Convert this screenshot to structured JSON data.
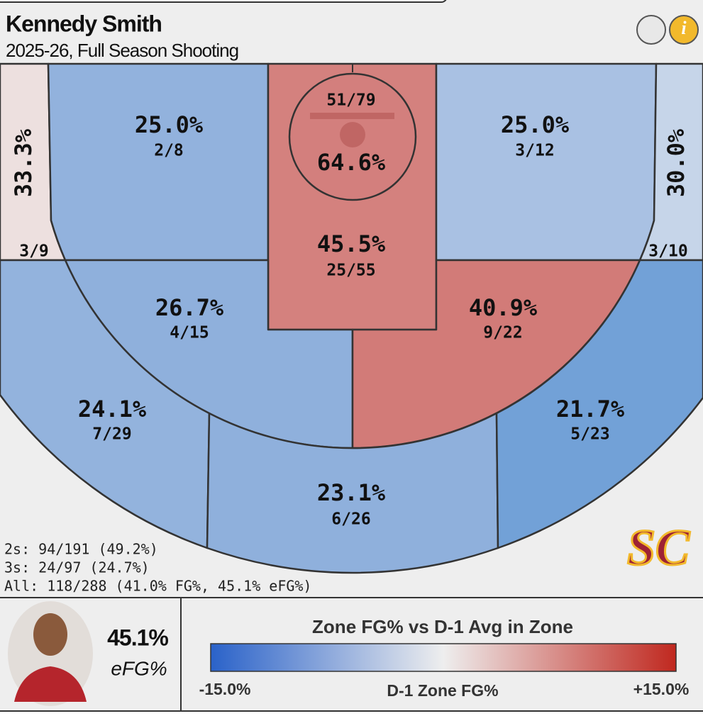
{
  "header": {
    "title": "Kennedy Smith",
    "subtitle": "2025-26, Full Season Shooting"
  },
  "zones": [
    {
      "pct": "33.3%",
      "made_att": "3/9",
      "color": "#ede0df"
    },
    {
      "pct": "25.0%",
      "made_att": "2/8",
      "color": "#92b2dd"
    },
    {
      "pct": "64.6%",
      "made_att": "51/79",
      "color": "#d37f7d"
    },
    {
      "pct": "45.5%",
      "made_att": "25/55",
      "color": "#d4817e"
    },
    {
      "pct": "25.0%",
      "made_att": "3/12",
      "color": "#a9c1e3"
    },
    {
      "pct": "30.0%",
      "made_att": "3/10",
      "color": "#c6d5e9"
    },
    {
      "pct": "26.7%",
      "made_att": "4/15",
      "color": "#8fb0dc"
    },
    {
      "pct": "40.9%",
      "made_att": "9/22",
      "color": "#d27b78"
    },
    {
      "pct": "24.1%",
      "made_att": "7/29",
      "color": "#93b3dd"
    },
    {
      "pct": "23.1%",
      "made_att": "6/26",
      "color": "#8fb0dc"
    },
    {
      "pct": "21.7%",
      "made_att": "5/23",
      "color": "#72a1d7"
    }
  ],
  "summary": [
    "2s: 94/191 (49.2%)",
    "3s: 24/97 (24.7%)",
    "All: 118/288 (41.0% FG%, 45.1% eFG%)"
  ],
  "logo": "SC",
  "player": {
    "efg": "45.1%",
    "efg_label": "eFG%"
  },
  "legend": {
    "title": "Zone FG% vs D-1 Avg in Zone",
    "min_label": "-15.0%",
    "center_label": "D-1 Zone FG%",
    "max_label": "+15.0%",
    "colors": [
      "#2a62c9",
      "#eeeeee",
      "#c0281f"
    ]
  }
}
